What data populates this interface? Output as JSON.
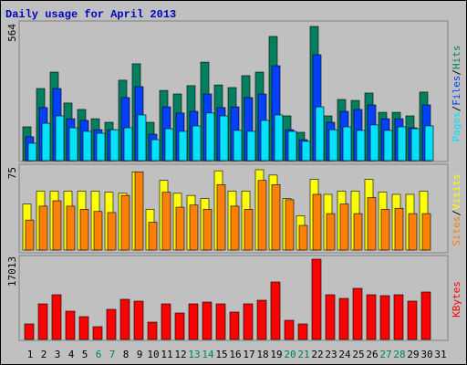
{
  "chart_data": [
    {
      "type": "bar",
      "title": "Daily usage for April 2013",
      "ylim": [
        0,
        564
      ],
      "yticks": [
        564
      ],
      "legend_separator": "/",
      "series": [
        {
          "name": "Hits",
          "color": "#008060",
          "values": [
            142,
            303,
            372,
            242,
            215,
            176,
            161,
            338,
            407,
            161,
            295,
            280,
            315,
            414,
            318,
            307,
            357,
            372,
            522,
            188,
            119,
            564,
            188,
            257,
            253,
            284,
            203,
            203,
            188,
            288,
            null
          ]
        },
        {
          "name": "Files",
          "color": "#0040ff",
          "values": [
            100,
            223,
            303,
            176,
            169,
            130,
            130,
            265,
            311,
            111,
            226,
            200,
            207,
            280,
            223,
            226,
            265,
            280,
            399,
            130,
            88,
            445,
            161,
            207,
            215,
            234,
            176,
            176,
            138,
            234,
            null
          ]
        },
        {
          "name": "Pages",
          "color": "#00e0ff",
          "values": [
            73,
            157,
            188,
            138,
            123,
            115,
            130,
            138,
            192,
            88,
            134,
            123,
            146,
            200,
            188,
            127,
            123,
            169,
            192,
            123,
            81,
            226,
            130,
            142,
            127,
            150,
            127,
            142,
            134,
            146,
            null
          ]
        }
      ]
    },
    {
      "type": "bar",
      "ylim": [
        0,
        75
      ],
      "yticks": [
        75
      ],
      "legend_separator": "/",
      "series": [
        {
          "name": "Visits",
          "color": "#ffff00",
          "values": [
            43,
            55,
            55,
            55,
            55,
            55,
            54,
            53,
            73,
            38,
            65,
            53,
            51,
            48,
            74,
            55,
            55,
            75,
            70,
            48,
            32,
            66,
            52,
            55,
            55,
            66,
            54,
            52,
            52,
            55,
            null
          ]
        },
        {
          "name": "Sites",
          "color": "#ff8000",
          "values": [
            28,
            41,
            46,
            41,
            38,
            36,
            35,
            51,
            73,
            26,
            54,
            40,
            42,
            38,
            61,
            41,
            38,
            65,
            61,
            47,
            23,
            52,
            34,
            43,
            34,
            49,
            38,
            39,
            34,
            34,
            null
          ]
        }
      ]
    },
    {
      "type": "bar",
      "ylim": [
        0,
        17013
      ],
      "yticks": [
        17013
      ],
      "categories": [
        "1",
        "2",
        "3",
        "4",
        "5",
        "6",
        "7",
        "8",
        "9",
        "10",
        "11",
        "12",
        "13",
        "14",
        "15",
        "16",
        "17",
        "18",
        "19",
        "20",
        "21",
        "22",
        "23",
        "24",
        "25",
        "26",
        "27",
        "28",
        "29",
        "30",
        "31"
      ],
      "category_colors": [
        "#000000",
        "#000000",
        "#000000",
        "#000000",
        "#000000",
        "#008060",
        "#008060",
        "#000000",
        "#000000",
        "#000000",
        "#000000",
        "#000000",
        "#008060",
        "#008060",
        "#000000",
        "#000000",
        "#000000",
        "#000000",
        "#000000",
        "#008060",
        "#008060",
        "#000000",
        "#000000",
        "#000000",
        "#000000",
        "#000000",
        "#008060",
        "#008060",
        "#000000",
        "#000000",
        "#000000"
      ],
      "series": [
        {
          "name": "KBytes",
          "color": "#ff0000",
          "values": [
            3287,
            7540,
            9473,
            5993,
            4833,
            2707,
            6380,
            8507,
            8120,
            3673,
            7540,
            5607,
            7540,
            7927,
            7540,
            5800,
            7540,
            8313,
            12180,
            4060,
            3287,
            17013,
            9473,
            8700,
            10827,
            9473,
            9280,
            9473,
            8120,
            10053,
            null
          ]
        }
      ]
    }
  ]
}
